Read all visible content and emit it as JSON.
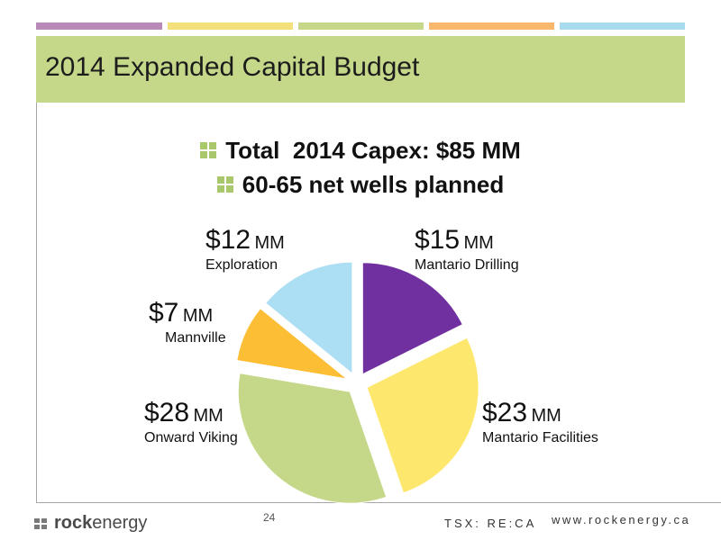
{
  "slide": {
    "title": "2014 Expanded Capital Budget",
    "bullets": [
      "Total  2014 Capex: $85 MM",
      "60-65 net wells planned"
    ],
    "top_bar_colors": [
      "#b98ab8",
      "#f4e07a",
      "#c5d88a",
      "#f7b86b",
      "#a9dbef"
    ],
    "accent_color": "#c5d88a",
    "bullet_icon": "four-squares-icon"
  },
  "chart_data": {
    "type": "pie",
    "exploded": true,
    "unit": "MM",
    "slices": [
      {
        "label": "Mantario Drilling",
        "amount": "$15",
        "unit": "MM",
        "value": 15,
        "color": "#7030a0"
      },
      {
        "label": "Mantario Facilities",
        "amount": "$23",
        "unit": "MM",
        "value": 23,
        "color": "#fde76d"
      },
      {
        "label": "Onward Viking",
        "amount": "$28",
        "unit": "MM",
        "value": 28,
        "color": "#c5d88a"
      },
      {
        "label": "Mannville",
        "amount": "$7",
        "unit": "MM",
        "value": 7,
        "color": "#fbbe35"
      },
      {
        "label": "Exploration",
        "amount": "$12",
        "unit": "MM",
        "value": 12,
        "color": "#addff4"
      }
    ]
  },
  "footer": {
    "logo_bold": "rock",
    "logo_light": "energy",
    "page_number": "24",
    "ticker": "TSX: RE:CA",
    "website": "www.rockenergy.ca"
  }
}
